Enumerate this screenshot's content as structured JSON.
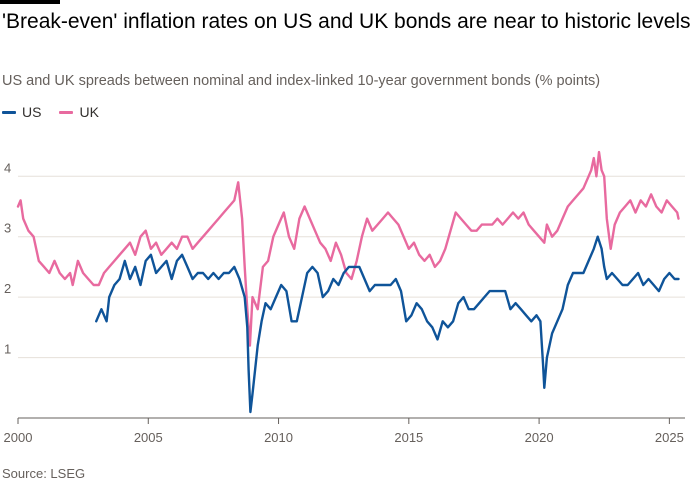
{
  "header": {
    "title": "'Break-even' inflation rates on US and UK bonds are near to historic levels",
    "subtitle": "US and UK spreads between nominal and index-linked 10-year government bonds (% points)"
  },
  "footer": {
    "source": "Source: LSEG"
  },
  "colors": {
    "us": "#0f5499",
    "uk": "#e86a9f",
    "grid": "#e6e0da",
    "axis": "#66605c"
  },
  "chart_data": {
    "type": "line",
    "title": "'Break-even' inflation rates on US and UK bonds are near to historic levels",
    "ylabel": "% points",
    "xlim": [
      2000,
      2025.6
    ],
    "ylim": [
      0,
      4.6
    ],
    "x_ticks": [
      2000,
      2005,
      2010,
      2015,
      2020,
      2025
    ],
    "x_tick_labels": [
      "2000",
      "2005",
      "2010",
      "2015",
      "2020",
      "2025"
    ],
    "y_ticks": [
      1,
      2,
      3,
      4
    ],
    "y_tick_labels": [
      "1",
      "2",
      "3",
      "4"
    ],
    "series": [
      {
        "name": "US",
        "key": "us",
        "points": [
          [
            2003.0,
            1.6
          ],
          [
            2003.2,
            1.8
          ],
          [
            2003.4,
            1.6
          ],
          [
            2003.5,
            2.0
          ],
          [
            2003.7,
            2.2
          ],
          [
            2003.9,
            2.3
          ],
          [
            2004.1,
            2.6
          ],
          [
            2004.3,
            2.3
          ],
          [
            2004.5,
            2.5
          ],
          [
            2004.7,
            2.2
          ],
          [
            2004.9,
            2.6
          ],
          [
            2005.1,
            2.7
          ],
          [
            2005.3,
            2.4
          ],
          [
            2005.5,
            2.5
          ],
          [
            2005.7,
            2.6
          ],
          [
            2005.9,
            2.3
          ],
          [
            2006.1,
            2.6
          ],
          [
            2006.3,
            2.7
          ],
          [
            2006.5,
            2.5
          ],
          [
            2006.7,
            2.3
          ],
          [
            2006.9,
            2.4
          ],
          [
            2007.1,
            2.4
          ],
          [
            2007.3,
            2.3
          ],
          [
            2007.5,
            2.4
          ],
          [
            2007.7,
            2.3
          ],
          [
            2007.9,
            2.4
          ],
          [
            2008.1,
            2.4
          ],
          [
            2008.3,
            2.5
          ],
          [
            2008.5,
            2.3
          ],
          [
            2008.7,
            2.0
          ],
          [
            2008.8,
            1.5
          ],
          [
            2008.85,
            0.8
          ],
          [
            2008.92,
            0.1
          ],
          [
            2009.0,
            0.4
          ],
          [
            2009.1,
            0.8
          ],
          [
            2009.2,
            1.2
          ],
          [
            2009.35,
            1.6
          ],
          [
            2009.5,
            1.9
          ],
          [
            2009.7,
            1.8
          ],
          [
            2009.9,
            2.0
          ],
          [
            2010.1,
            2.2
          ],
          [
            2010.3,
            2.1
          ],
          [
            2010.5,
            1.6
          ],
          [
            2010.7,
            1.6
          ],
          [
            2010.9,
            2.0
          ],
          [
            2011.1,
            2.4
          ],
          [
            2011.3,
            2.5
          ],
          [
            2011.5,
            2.4
          ],
          [
            2011.7,
            2.0
          ],
          [
            2011.9,
            2.1
          ],
          [
            2012.1,
            2.3
          ],
          [
            2012.3,
            2.2
          ],
          [
            2012.5,
            2.4
          ],
          [
            2012.7,
            2.5
          ],
          [
            2012.9,
            2.5
          ],
          [
            2013.1,
            2.5
          ],
          [
            2013.3,
            2.3
          ],
          [
            2013.5,
            2.1
          ],
          [
            2013.7,
            2.2
          ],
          [
            2013.9,
            2.2
          ],
          [
            2014.1,
            2.2
          ],
          [
            2014.3,
            2.2
          ],
          [
            2014.5,
            2.3
          ],
          [
            2014.7,
            2.1
          ],
          [
            2014.9,
            1.6
          ],
          [
            2015.1,
            1.7
          ],
          [
            2015.3,
            1.9
          ],
          [
            2015.5,
            1.8
          ],
          [
            2015.7,
            1.6
          ],
          [
            2015.9,
            1.5
          ],
          [
            2016.1,
            1.3
          ],
          [
            2016.3,
            1.6
          ],
          [
            2016.5,
            1.5
          ],
          [
            2016.7,
            1.6
          ],
          [
            2016.9,
            1.9
          ],
          [
            2017.1,
            2.0
          ],
          [
            2017.3,
            1.8
          ],
          [
            2017.5,
            1.8
          ],
          [
            2017.7,
            1.9
          ],
          [
            2017.9,
            2.0
          ],
          [
            2018.1,
            2.1
          ],
          [
            2018.3,
            2.1
          ],
          [
            2018.5,
            2.1
          ],
          [
            2018.7,
            2.1
          ],
          [
            2018.9,
            1.8
          ],
          [
            2019.1,
            1.9
          ],
          [
            2019.3,
            1.8
          ],
          [
            2019.5,
            1.7
          ],
          [
            2019.7,
            1.6
          ],
          [
            2019.9,
            1.7
          ],
          [
            2020.05,
            1.6
          ],
          [
            2020.15,
            0.9
          ],
          [
            2020.2,
            0.5
          ],
          [
            2020.3,
            1.0
          ],
          [
            2020.5,
            1.4
          ],
          [
            2020.7,
            1.6
          ],
          [
            2020.9,
            1.8
          ],
          [
            2021.1,
            2.2
          ],
          [
            2021.3,
            2.4
          ],
          [
            2021.5,
            2.4
          ],
          [
            2021.7,
            2.4
          ],
          [
            2021.9,
            2.6
          ],
          [
            2022.1,
            2.8
          ],
          [
            2022.25,
            3.0
          ],
          [
            2022.4,
            2.8
          ],
          [
            2022.5,
            2.5
          ],
          [
            2022.6,
            2.3
          ],
          [
            2022.8,
            2.4
          ],
          [
            2023.0,
            2.3
          ],
          [
            2023.2,
            2.2
          ],
          [
            2023.4,
            2.2
          ],
          [
            2023.6,
            2.3
          ],
          [
            2023.8,
            2.4
          ],
          [
            2024.0,
            2.2
          ],
          [
            2024.2,
            2.3
          ],
          [
            2024.4,
            2.2
          ],
          [
            2024.6,
            2.1
          ],
          [
            2024.8,
            2.3
          ],
          [
            2025.0,
            2.4
          ],
          [
            2025.2,
            2.3
          ],
          [
            2025.35,
            2.3
          ]
        ]
      },
      {
        "name": "UK",
        "key": "uk",
        "points": [
          [
            2000.0,
            3.5
          ],
          [
            2000.1,
            3.6
          ],
          [
            2000.2,
            3.3
          ],
          [
            2000.4,
            3.1
          ],
          [
            2000.6,
            3.0
          ],
          [
            2000.8,
            2.6
          ],
          [
            2001.0,
            2.5
          ],
          [
            2001.2,
            2.4
          ],
          [
            2001.4,
            2.6
          ],
          [
            2001.6,
            2.4
          ],
          [
            2001.8,
            2.3
          ],
          [
            2002.0,
            2.4
          ],
          [
            2002.1,
            2.2
          ],
          [
            2002.3,
            2.6
          ],
          [
            2002.5,
            2.4
          ],
          [
            2002.7,
            2.3
          ],
          [
            2002.9,
            2.2
          ],
          [
            2003.1,
            2.2
          ],
          [
            2003.3,
            2.4
          ],
          [
            2003.5,
            2.5
          ],
          [
            2003.7,
            2.6
          ],
          [
            2003.9,
            2.7
          ],
          [
            2004.1,
            2.8
          ],
          [
            2004.3,
            2.9
          ],
          [
            2004.5,
            2.7
          ],
          [
            2004.7,
            3.0
          ],
          [
            2004.9,
            3.1
          ],
          [
            2005.1,
            2.8
          ],
          [
            2005.3,
            2.9
          ],
          [
            2005.5,
            2.7
          ],
          [
            2005.7,
            2.8
          ],
          [
            2005.9,
            2.9
          ],
          [
            2006.1,
            2.8
          ],
          [
            2006.3,
            3.0
          ],
          [
            2006.5,
            3.0
          ],
          [
            2006.7,
            2.8
          ],
          [
            2006.9,
            2.9
          ],
          [
            2007.1,
            3.0
          ],
          [
            2007.3,
            3.1
          ],
          [
            2007.5,
            3.2
          ],
          [
            2007.7,
            3.3
          ],
          [
            2007.9,
            3.4
          ],
          [
            2008.1,
            3.5
          ],
          [
            2008.3,
            3.6
          ],
          [
            2008.45,
            3.9
          ],
          [
            2008.6,
            3.3
          ],
          [
            2008.7,
            2.5
          ],
          [
            2008.8,
            1.8
          ],
          [
            2008.9,
            1.2
          ],
          [
            2009.0,
            2.0
          ],
          [
            2009.2,
            1.8
          ],
          [
            2009.4,
            2.5
          ],
          [
            2009.6,
            2.6
          ],
          [
            2009.8,
            3.0
          ],
          [
            2010.0,
            3.2
          ],
          [
            2010.2,
            3.4
          ],
          [
            2010.4,
            3.0
          ],
          [
            2010.6,
            2.8
          ],
          [
            2010.8,
            3.3
          ],
          [
            2011.0,
            3.5
          ],
          [
            2011.2,
            3.3
          ],
          [
            2011.4,
            3.1
          ],
          [
            2011.6,
            2.9
          ],
          [
            2011.8,
            2.8
          ],
          [
            2012.0,
            2.6
          ],
          [
            2012.2,
            2.9
          ],
          [
            2012.4,
            2.7
          ],
          [
            2012.6,
            2.4
          ],
          [
            2012.8,
            2.3
          ],
          [
            2013.0,
            2.6
          ],
          [
            2013.2,
            3.0
          ],
          [
            2013.4,
            3.3
          ],
          [
            2013.6,
            3.1
          ],
          [
            2013.8,
            3.2
          ],
          [
            2014.0,
            3.3
          ],
          [
            2014.2,
            3.4
          ],
          [
            2014.4,
            3.3
          ],
          [
            2014.6,
            3.2
          ],
          [
            2014.8,
            3.0
          ],
          [
            2015.0,
            2.8
          ],
          [
            2015.2,
            2.9
          ],
          [
            2015.4,
            2.7
          ],
          [
            2015.6,
            2.6
          ],
          [
            2015.8,
            2.7
          ],
          [
            2016.0,
            2.5
          ],
          [
            2016.2,
            2.6
          ],
          [
            2016.4,
            2.8
          ],
          [
            2016.6,
            3.1
          ],
          [
            2016.8,
            3.4
          ],
          [
            2017.0,
            3.3
          ],
          [
            2017.2,
            3.2
          ],
          [
            2017.4,
            3.1
          ],
          [
            2017.6,
            3.1
          ],
          [
            2017.8,
            3.2
          ],
          [
            2018.0,
            3.2
          ],
          [
            2018.2,
            3.2
          ],
          [
            2018.4,
            3.3
          ],
          [
            2018.6,
            3.2
          ],
          [
            2018.8,
            3.3
          ],
          [
            2019.0,
            3.4
          ],
          [
            2019.2,
            3.3
          ],
          [
            2019.4,
            3.4
          ],
          [
            2019.6,
            3.2
          ],
          [
            2019.8,
            3.1
          ],
          [
            2020.0,
            3.0
          ],
          [
            2020.2,
            2.9
          ],
          [
            2020.3,
            3.2
          ],
          [
            2020.5,
            3.0
          ],
          [
            2020.7,
            3.1
          ],
          [
            2020.9,
            3.3
          ],
          [
            2021.1,
            3.5
          ],
          [
            2021.3,
            3.6
          ],
          [
            2021.5,
            3.7
          ],
          [
            2021.7,
            3.8
          ],
          [
            2021.9,
            4.0
          ],
          [
            2022.0,
            4.1
          ],
          [
            2022.1,
            4.3
          ],
          [
            2022.2,
            4.0
          ],
          [
            2022.3,
            4.4
          ],
          [
            2022.4,
            4.1
          ],
          [
            2022.5,
            4.0
          ],
          [
            2022.6,
            3.3
          ],
          [
            2022.75,
            2.8
          ],
          [
            2022.9,
            3.2
          ],
          [
            2023.1,
            3.4
          ],
          [
            2023.3,
            3.5
          ],
          [
            2023.5,
            3.6
          ],
          [
            2023.7,
            3.4
          ],
          [
            2023.9,
            3.6
          ],
          [
            2024.1,
            3.5
          ],
          [
            2024.3,
            3.7
          ],
          [
            2024.5,
            3.5
          ],
          [
            2024.7,
            3.4
          ],
          [
            2024.9,
            3.6
          ],
          [
            2025.1,
            3.5
          ],
          [
            2025.3,
            3.4
          ],
          [
            2025.35,
            3.3
          ]
        ]
      }
    ]
  }
}
